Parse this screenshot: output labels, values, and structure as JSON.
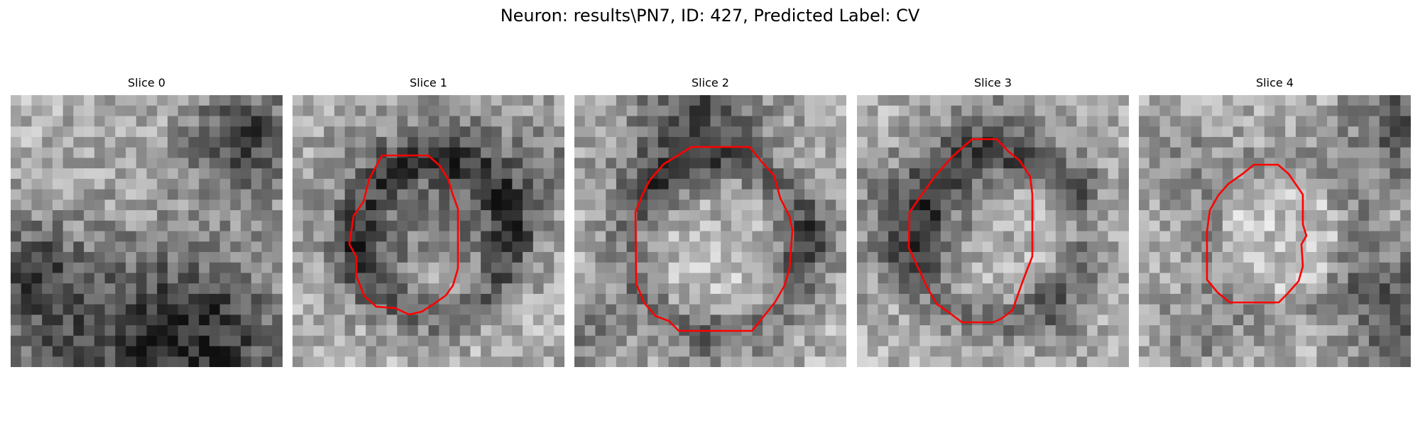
{
  "figure": {
    "title": "Neuron: results\\PN7, ID: 427, Predicted Label: CV"
  },
  "contour_color": "#ff0000",
  "panels": [
    {
      "title": "Slice 0",
      "has_contour": false
    },
    {
      "title": "Slice 1",
      "has_contour": true
    },
    {
      "title": "Slice 2",
      "has_contour": true
    },
    {
      "title": "Slice 3",
      "has_contour": true
    },
    {
      "title": "Slice 4",
      "has_contour": true
    }
  ]
}
